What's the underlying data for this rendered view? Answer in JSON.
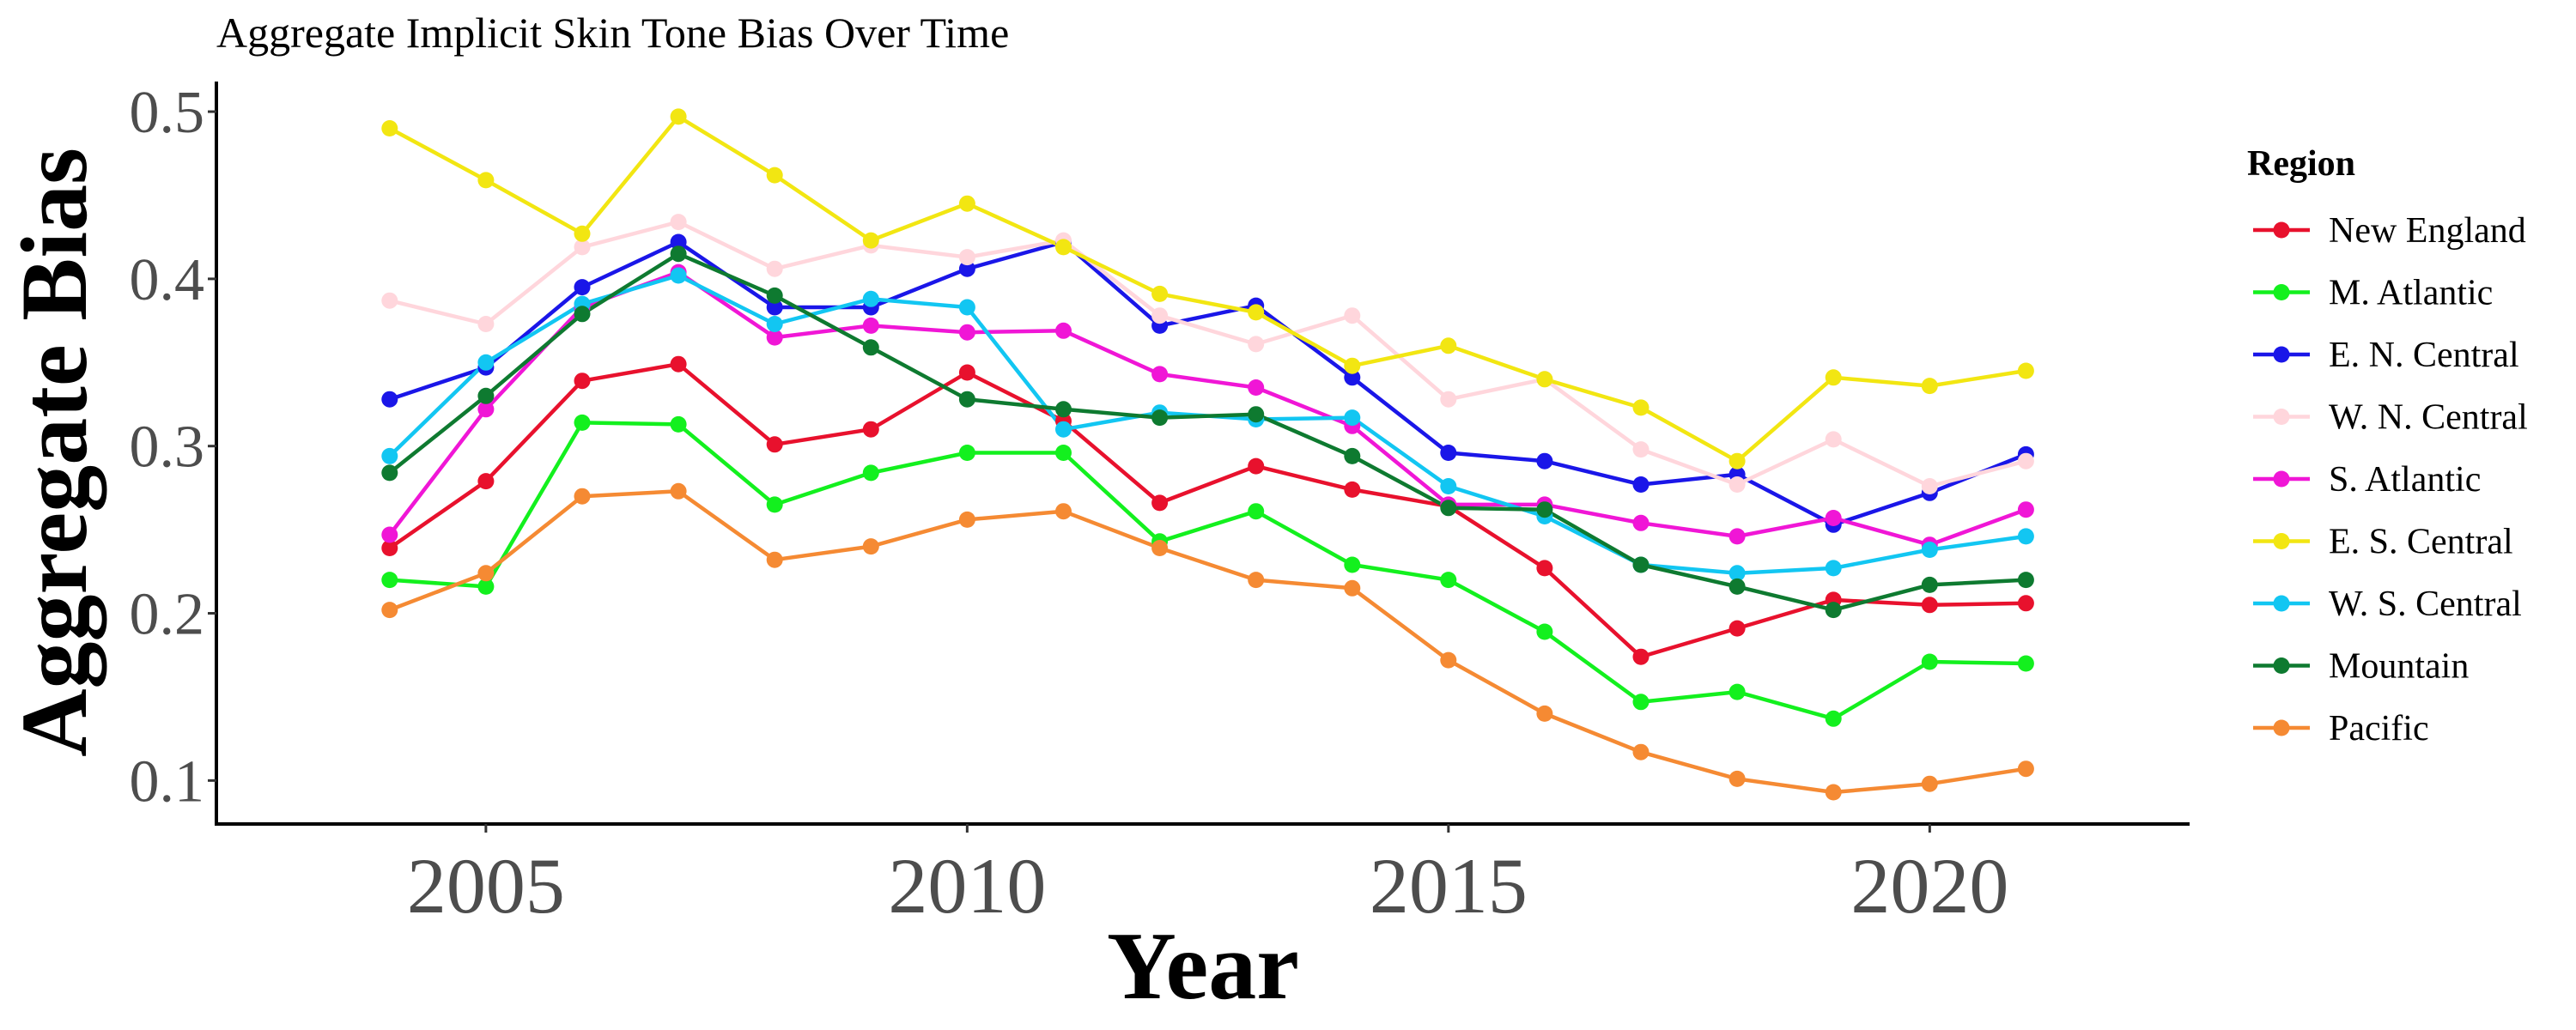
{
  "chart_data": {
    "type": "line",
    "title": "Aggregate Implicit Skin Tone Bias Over Time",
    "xlabel": "Year",
    "ylabel": "Aggregate Bias",
    "x": [
      2004,
      2005,
      2006,
      2007,
      2008,
      2009,
      2010,
      2011,
      2012,
      2013,
      2014,
      2015,
      2016,
      2017,
      2018,
      2019,
      2020,
      2021
    ],
    "xlim": [
      2002.2,
      2022.7
    ],
    "ylim": [
      0.074,
      0.518
    ],
    "xticks": [
      2005,
      2010,
      2015,
      2020
    ],
    "yticks": [
      0.1,
      0.2,
      0.3,
      0.4,
      0.5
    ],
    "ytick_labels": [
      "0.1",
      "0.2",
      "0.3",
      "0.4",
      "0.5"
    ],
    "xtick_labels": [
      "2005",
      "2010",
      "2015",
      "2020"
    ],
    "grid": false,
    "legend": {
      "title": "Region",
      "position": "right"
    },
    "series": [
      {
        "name": "New England",
        "color": "#e8112d",
        "values": [
          0.239,
          0.279,
          0.339,
          0.349,
          0.301,
          0.31,
          0.344,
          0.315,
          0.266,
          0.288,
          0.274,
          0.264,
          0.227,
          0.174,
          0.191,
          0.208,
          0.205,
          0.206
        ]
      },
      {
        "name": "M. Atlantic",
        "color": "#13f01e",
        "values": [
          0.22,
          0.216,
          0.314,
          0.313,
          0.265,
          0.284,
          0.296,
          0.296,
          0.243,
          0.261,
          0.229,
          0.22,
          0.189,
          0.147,
          0.153,
          0.137,
          0.171,
          0.17
        ]
      },
      {
        "name": "E. N. Central",
        "color": "#1a16e8",
        "values": [
          0.328,
          0.347,
          0.395,
          0.422,
          0.383,
          0.383,
          0.406,
          0.422,
          0.372,
          0.384,
          0.341,
          0.296,
          0.291,
          0.277,
          0.283,
          0.253,
          0.272,
          0.295
        ]
      },
      {
        "name": "W. N. Central",
        "color": "#ffd6dc",
        "values": [
          0.387,
          0.373,
          0.419,
          0.434,
          0.406,
          0.42,
          0.413,
          0.423,
          0.378,
          0.361,
          0.378,
          0.328,
          0.34,
          0.298,
          0.277,
          0.304,
          0.276,
          0.291
        ]
      },
      {
        "name": "S. Atlantic",
        "color": "#f016d6",
        "values": [
          0.247,
          0.322,
          0.383,
          0.404,
          0.365,
          0.372,
          0.368,
          0.369,
          0.343,
          0.335,
          0.312,
          0.265,
          0.265,
          0.254,
          0.246,
          0.257,
          0.241,
          0.262
        ]
      },
      {
        "name": "E. S. Central",
        "color": "#f2e612",
        "values": [
          0.49,
          0.459,
          0.427,
          0.497,
          0.462,
          0.423,
          0.445,
          0.419,
          0.391,
          0.38,
          0.348,
          0.36,
          0.34,
          0.323,
          0.291,
          0.341,
          0.336,
          0.345
        ]
      },
      {
        "name": "W. S. Central",
        "color": "#12c6f2",
        "values": [
          0.294,
          0.35,
          0.385,
          0.402,
          0.373,
          0.388,
          0.383,
          0.31,
          0.32,
          0.316,
          0.317,
          0.276,
          0.258,
          0.229,
          0.224,
          0.227,
          0.238,
          0.246
        ]
      },
      {
        "name": "Mountain",
        "color": "#0e7a30",
        "values": [
          0.284,
          0.33,
          0.379,
          0.415,
          0.39,
          0.359,
          0.328,
          0.322,
          0.317,
          0.319,
          0.294,
          0.263,
          0.262,
          0.229,
          0.216,
          0.202,
          0.217,
          0.22
        ]
      },
      {
        "name": "Pacific",
        "color": "#f58a33",
        "values": [
          0.202,
          0.224,
          0.27,
          0.273,
          0.232,
          0.24,
          0.256,
          0.261,
          0.239,
          0.22,
          0.215,
          0.172,
          0.14,
          0.117,
          0.101,
          0.093,
          0.098,
          0.107
        ]
      }
    ]
  }
}
